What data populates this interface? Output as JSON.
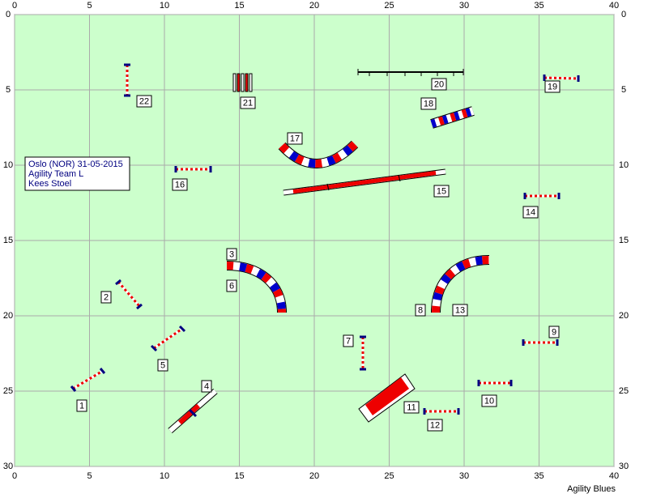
{
  "axes": {
    "xticks": [
      0,
      5,
      10,
      15,
      20,
      25,
      30,
      35,
      40
    ],
    "yticks": [
      0,
      5,
      10,
      15,
      20,
      25,
      30
    ]
  },
  "info": [
    "Oslo (NOR) 31-05-2015",
    "Agility Team L",
    "Kees Stoel"
  ],
  "obstacle_labels": [
    "1",
    "2",
    "3",
    "4",
    "5",
    "6",
    "7",
    "8",
    "9",
    "10",
    "11",
    "12",
    "13",
    "14",
    "15",
    "16",
    "17",
    "18",
    "19",
    "20",
    "21",
    "22"
  ],
  "footer": "Agility Blues"
}
